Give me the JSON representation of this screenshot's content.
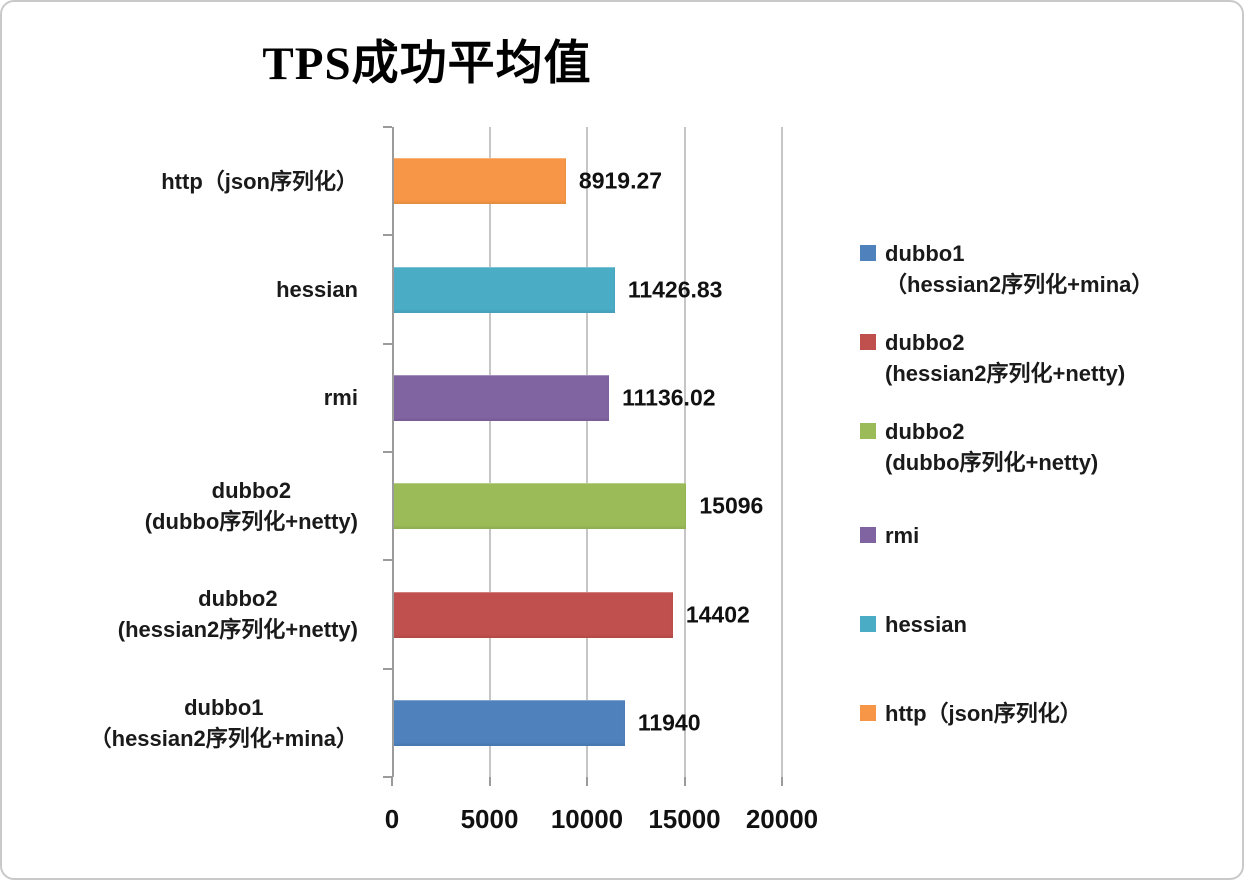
{
  "chart_data": {
    "type": "bar",
    "orientation": "horizontal",
    "title": "TPS成功平均值",
    "xlabel": "",
    "ylabel": "",
    "xlim": [
      0,
      20000
    ],
    "x_ticks": [
      0,
      5000,
      10000,
      15000,
      20000
    ],
    "grid": true,
    "legend_position": "right",
    "bars": [
      {
        "category_lines": [
          "http（json序列化）"
        ],
        "value": 8919.27,
        "label": "8919.27",
        "color": "#F79646",
        "series": "http（json序列化）"
      },
      {
        "category_lines": [
          "hessian"
        ],
        "value": 11426.83,
        "label": "11426.83",
        "color": "#4BACC6",
        "series": "hessian"
      },
      {
        "category_lines": [
          "rmi"
        ],
        "value": 11136.02,
        "label": "11136.02",
        "color": "#8064A2",
        "series": "rmi"
      },
      {
        "category_lines": [
          "dubbo2",
          "(dubbo序列化+netty)"
        ],
        "value": 15096,
        "label": "15096",
        "color": "#9BBB59",
        "series": "dubbo2 (dubbo序列化+netty)"
      },
      {
        "category_lines": [
          "dubbo2",
          "(hessian2序列化+netty)"
        ],
        "value": 14402,
        "label": "14402",
        "color": "#C0504D",
        "series": "dubbo2 (hessian2序列化+netty)"
      },
      {
        "category_lines": [
          "dubbo1",
          "（hessian2序列化+mina）"
        ],
        "value": 11940,
        "label": "11940",
        "color": "#4F81BD",
        "series": "dubbo1（hessian2序列化+mina）"
      }
    ],
    "legend": [
      {
        "lines": [
          "dubbo1",
          "（hessian2序列化+mina）"
        ],
        "color": "#4F81BD"
      },
      {
        "lines": [
          "dubbo2",
          "(hessian2序列化+netty)"
        ],
        "color": "#C0504D"
      },
      {
        "lines": [
          "dubbo2",
          "(dubbo序列化+netty)"
        ],
        "color": "#9BBB59"
      },
      {
        "lines": [
          "rmi"
        ],
        "color": "#8064A2"
      },
      {
        "lines": [
          "hessian"
        ],
        "color": "#4BACC6"
      },
      {
        "lines": [
          "http（json序列化）"
        ],
        "color": "#F79646"
      }
    ]
  }
}
